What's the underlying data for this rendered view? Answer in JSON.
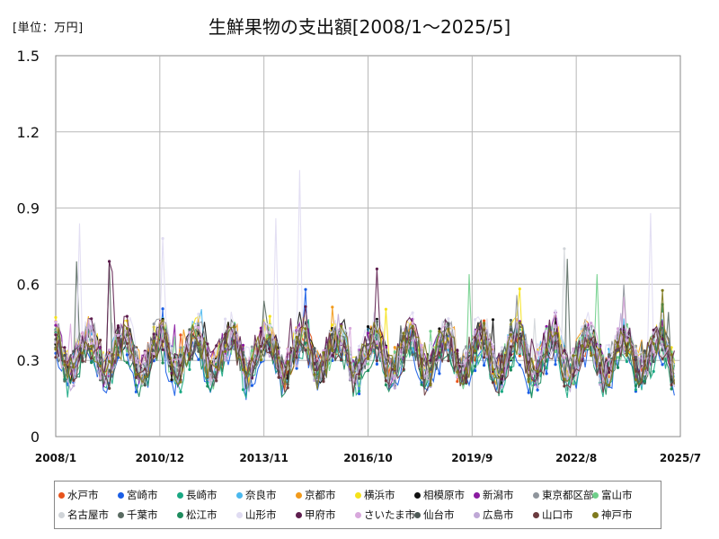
{
  "unit_label": "[単位：万円]",
  "chart_data": {
    "type": "line",
    "title": "生鮮果物の支出額[2008/1～2025/5]",
    "xlabel": "",
    "ylabel": "",
    "ylim": [
      0,
      1.5
    ],
    "y_ticks": [
      "0",
      "0.3",
      "0.6",
      "0.9",
      "1.2",
      "1.5"
    ],
    "x_ticks": [
      "2008/1",
      "2010/12",
      "2013/11",
      "2016/10",
      "2019/9",
      "2022/8",
      "2025/7"
    ],
    "x_range": [
      "2008/1",
      "2025/7"
    ],
    "grid": true,
    "legend_position": "bottom",
    "series": [
      {
        "name": "水戸市",
        "color": "#e8541c",
        "base": 0.31
      },
      {
        "name": "宮崎市",
        "color": "#1a5ee6",
        "base": 0.27
      },
      {
        "name": "長崎市",
        "color": "#1aa883",
        "base": 0.28
      },
      {
        "name": "奈良市",
        "color": "#4ab8ee",
        "base": 0.32
      },
      {
        "name": "京都市",
        "color": "#f29a1b",
        "base": 0.33
      },
      {
        "name": "横浜市",
        "color": "#f5e21a",
        "base": 0.33
      },
      {
        "name": "相模原市",
        "color": "#111111",
        "base": 0.32
      },
      {
        "name": "新潟市",
        "color": "#8a1aa0",
        "base": 0.32
      },
      {
        "name": "東京都区部",
        "color": "#8f959c",
        "base": 0.33
      },
      {
        "name": "富山市",
        "color": "#6fcf8a",
        "base": 0.31
      },
      {
        "name": "名古屋市",
        "color": "#d0d4d8",
        "base": 0.31
      },
      {
        "name": "千葉市",
        "color": "#5a6b62",
        "base": 0.31
      },
      {
        "name": "松江市",
        "color": "#1e8c5e",
        "base": 0.28
      },
      {
        "name": "山形市",
        "color": "#e0dcf2",
        "base": 0.35
      },
      {
        "name": "甲府市",
        "color": "#5e1e4e",
        "base": 0.33
      },
      {
        "name": "さいたま市",
        "color": "#d8a8dc",
        "base": 0.32
      },
      {
        "name": "仙台市",
        "color": "#4f5a57",
        "base": 0.31
      },
      {
        "name": "広島市",
        "color": "#bfa8d6",
        "base": 0.3
      },
      {
        "name": "山口市",
        "color": "#6a3a3e",
        "base": 0.29
      },
      {
        "name": "神戸市",
        "color": "#7f7a1e",
        "base": 0.31
      }
    ]
  }
}
